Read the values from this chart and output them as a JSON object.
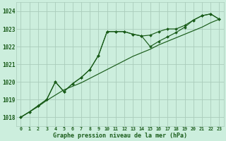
{
  "title": "Graphe pression niveau de la mer (hPa)",
  "bg_color": "#cceedd",
  "grid_color": "#aaccbb",
  "line_color": "#1a5c1a",
  "marker_color": "#1a5c1a",
  "x_ticks": [
    0,
    1,
    2,
    3,
    4,
    5,
    6,
    7,
    8,
    9,
    10,
    11,
    12,
    13,
    14,
    15,
    16,
    17,
    18,
    19,
    20,
    21,
    22,
    23
  ],
  "ylim": [
    1017.5,
    1024.5
  ],
  "yticks": [
    1018,
    1019,
    1020,
    1021,
    1022,
    1023,
    1024
  ],
  "series1_x": [
    0,
    1,
    2,
    3,
    4,
    5,
    6,
    7,
    8,
    9,
    10,
    11,
    12,
    13,
    14,
    15,
    16,
    17,
    18,
    19,
    20,
    21,
    22,
    23
  ],
  "series1_y": [
    1018.0,
    1018.3,
    1018.65,
    1019.0,
    1020.0,
    1019.45,
    1019.9,
    1020.25,
    1020.7,
    1021.5,
    1022.85,
    1022.85,
    1022.85,
    1022.7,
    1022.6,
    1022.65,
    1022.85,
    1023.0,
    1023.0,
    1023.2,
    1023.5,
    1023.75,
    1023.85,
    1023.55
  ],
  "series2_x": [
    0,
    1,
    2,
    3,
    4,
    5,
    6,
    7,
    8,
    9,
    10,
    11,
    12,
    13,
    14,
    15,
    16,
    17,
    18,
    19,
    20,
    21,
    22,
    23
  ],
  "series2_y": [
    1018.0,
    1018.3,
    1018.6,
    1018.95,
    1019.25,
    1019.55,
    1019.75,
    1019.95,
    1020.2,
    1020.45,
    1020.7,
    1020.95,
    1021.2,
    1021.45,
    1021.65,
    1021.85,
    1022.1,
    1022.3,
    1022.5,
    1022.7,
    1022.9,
    1023.1,
    1023.35,
    1023.55
  ],
  "series3_x": [
    0,
    1,
    2,
    3,
    4,
    5,
    6,
    7,
    8,
    9,
    10,
    11,
    12,
    13,
    14,
    15,
    16,
    17,
    18,
    19,
    20,
    21,
    22,
    23
  ],
  "series3_y": [
    1018.0,
    1018.3,
    1018.65,
    1019.0,
    1020.0,
    1019.45,
    1019.9,
    1020.25,
    1020.7,
    1021.5,
    1022.85,
    1022.85,
    1022.85,
    1022.7,
    1022.6,
    1022.0,
    1022.3,
    1022.55,
    1022.8,
    1023.1,
    1023.5,
    1023.75,
    1023.85,
    1023.55
  ]
}
